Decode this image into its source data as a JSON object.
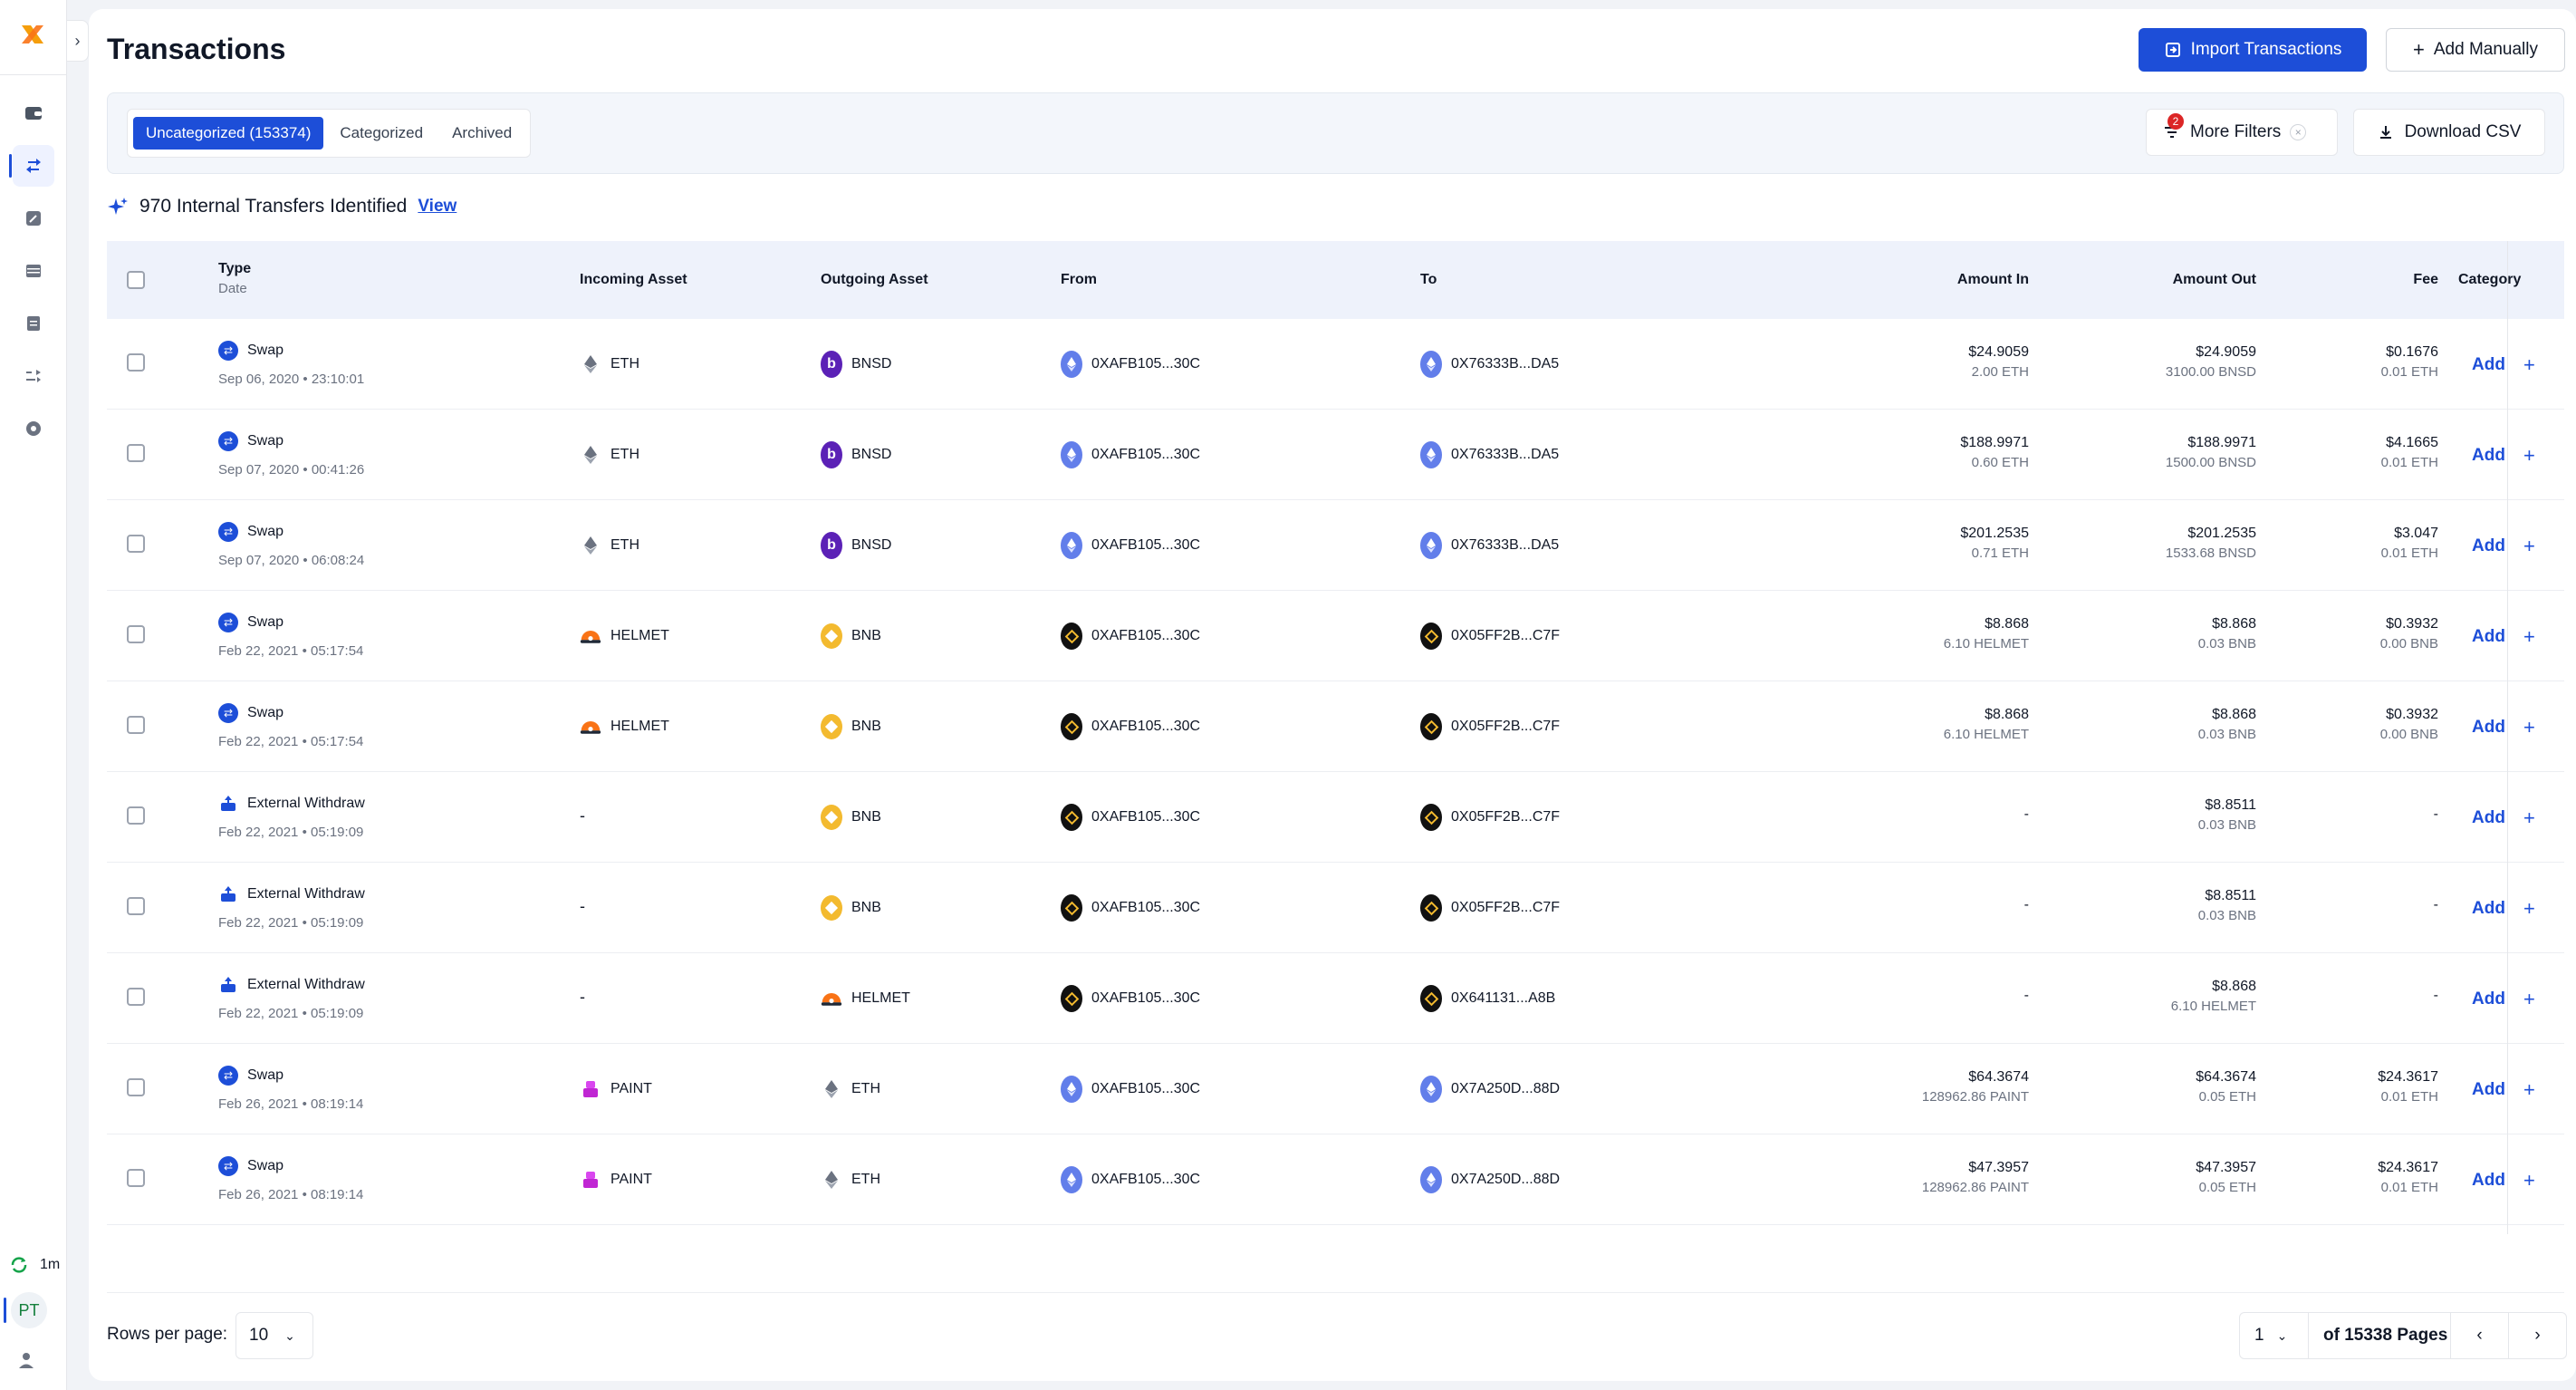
{
  "sidebar": {
    "sync_time": "1m",
    "avatar_initials": "PT"
  },
  "header": {
    "title": "Transactions",
    "import_label": "Import Transactions",
    "add_label": "Add Manually"
  },
  "filters": {
    "tabs": [
      {
        "label": "Uncategorized (153374)",
        "active": true
      },
      {
        "label": "Categorized",
        "active": false
      },
      {
        "label": "Archived",
        "active": false
      }
    ],
    "more_filters_label": "More Filters",
    "filter_count": "2",
    "download_label": "Download CSV"
  },
  "internal_transfers": {
    "text": "970 Internal Transfers Identified",
    "link": "View"
  },
  "table": {
    "columns": {
      "type": "Type",
      "date": "Date",
      "incoming": "Incoming Asset",
      "outgoing": "Outgoing Asset",
      "from": "From",
      "to": "To",
      "amount_in": "Amount In",
      "amount_out": "Amount Out",
      "fee": "Fee",
      "category": "Category"
    },
    "add_label": "Add",
    "rows": [
      {
        "type": "Swap",
        "date": "Sep 06, 2020 • 23:10:01",
        "in_asset": "ETH",
        "out_asset": "BNSD",
        "from": "0XAFB105...30C",
        "to": "0X76333B...DA5",
        "amt_in": "$24.9059",
        "amt_in_sub": "2.00 ETH",
        "amt_out": "$24.9059",
        "amt_out_sub": "3100.00 BNSD",
        "fee": "$0.1676",
        "fee_sub": "0.01 ETH"
      },
      {
        "type": "Swap",
        "date": "Sep 07, 2020 • 00:41:26",
        "in_asset": "ETH",
        "out_asset": "BNSD",
        "from": "0XAFB105...30C",
        "to": "0X76333B...DA5",
        "amt_in": "$188.9971",
        "amt_in_sub": "0.60 ETH",
        "amt_out": "$188.9971",
        "amt_out_sub": "1500.00 BNSD",
        "fee": "$4.1665",
        "fee_sub": "0.01 ETH"
      },
      {
        "type": "Swap",
        "date": "Sep 07, 2020 • 06:08:24",
        "in_asset": "ETH",
        "out_asset": "BNSD",
        "from": "0XAFB105...30C",
        "to": "0X76333B...DA5",
        "amt_in": "$201.2535",
        "amt_in_sub": "0.71 ETH",
        "amt_out": "$201.2535",
        "amt_out_sub": "1533.68 BNSD",
        "fee": "$3.047",
        "fee_sub": "0.01 ETH"
      },
      {
        "type": "Swap",
        "date": "Feb 22, 2021 • 05:17:54",
        "in_asset": "HELMET",
        "out_asset": "BNB",
        "from": "0XAFB105...30C",
        "to": "0X05FF2B...C7F",
        "amt_in": "$8.868",
        "amt_in_sub": "6.10 HELMET",
        "amt_out": "$8.868",
        "amt_out_sub": "0.03 BNB",
        "fee": "$0.3932",
        "fee_sub": "0.00 BNB"
      },
      {
        "type": "Swap",
        "date": "Feb 22, 2021 • 05:17:54",
        "in_asset": "HELMET",
        "out_asset": "BNB",
        "from": "0XAFB105...30C",
        "to": "0X05FF2B...C7F",
        "amt_in": "$8.868",
        "amt_in_sub": "6.10 HELMET",
        "amt_out": "$8.868",
        "amt_out_sub": "0.03 BNB",
        "fee": "$0.3932",
        "fee_sub": "0.00 BNB"
      },
      {
        "type": "External Withdraw",
        "date": "Feb 22, 2021 • 05:19:09",
        "in_asset": "-",
        "out_asset": "BNB",
        "from": "0XAFB105...30C",
        "to": "0X05FF2B...C7F",
        "amt_in": "-",
        "amt_in_sub": "",
        "amt_out": "$8.8511",
        "amt_out_sub": "0.03 BNB",
        "fee": "-",
        "fee_sub": ""
      },
      {
        "type": "External Withdraw",
        "date": "Feb 22, 2021 • 05:19:09",
        "in_asset": "-",
        "out_asset": "BNB",
        "from": "0XAFB105...30C",
        "to": "0X05FF2B...C7F",
        "amt_in": "-",
        "amt_in_sub": "",
        "amt_out": "$8.8511",
        "amt_out_sub": "0.03 BNB",
        "fee": "-",
        "fee_sub": ""
      },
      {
        "type": "External Withdraw",
        "date": "Feb 22, 2021 • 05:19:09",
        "in_asset": "-",
        "out_asset": "HELMET",
        "from": "0XAFB105...30C",
        "to": "0X641131...A8B",
        "amt_in": "-",
        "amt_in_sub": "",
        "amt_out": "$8.868",
        "amt_out_sub": "6.10 HELMET",
        "fee": "-",
        "fee_sub": ""
      },
      {
        "type": "Swap",
        "date": "Feb 26, 2021 • 08:19:14",
        "in_asset": "PAINT",
        "out_asset": "ETH",
        "from": "0XAFB105...30C",
        "to": "0X7A250D...88D",
        "amt_in": "$64.3674",
        "amt_in_sub": "128962.86 PAINT",
        "amt_out": "$64.3674",
        "amt_out_sub": "0.05 ETH",
        "fee": "$24.3617",
        "fee_sub": "0.01 ETH"
      },
      {
        "type": "Swap",
        "date": "Feb 26, 2021 • 08:19:14",
        "in_asset": "PAINT",
        "out_asset": "ETH",
        "from": "0XAFB105...30C",
        "to": "0X7A250D...88D",
        "amt_in": "$47.3957",
        "amt_in_sub": "128962.86 PAINT",
        "amt_out": "$47.3957",
        "amt_out_sub": "0.05 ETH",
        "fee": "$24.3617",
        "fee_sub": "0.01 ETH"
      }
    ]
  },
  "footer": {
    "rows_label": "Rows per page:",
    "rows_value": "10",
    "page_value": "1",
    "pages_text": "of 15338 Pages"
  },
  "colors": {
    "accent": "#1d4ed8",
    "badge": "#dc2626",
    "eth": "#627eea",
    "bnb": "#f3ba2f"
  }
}
